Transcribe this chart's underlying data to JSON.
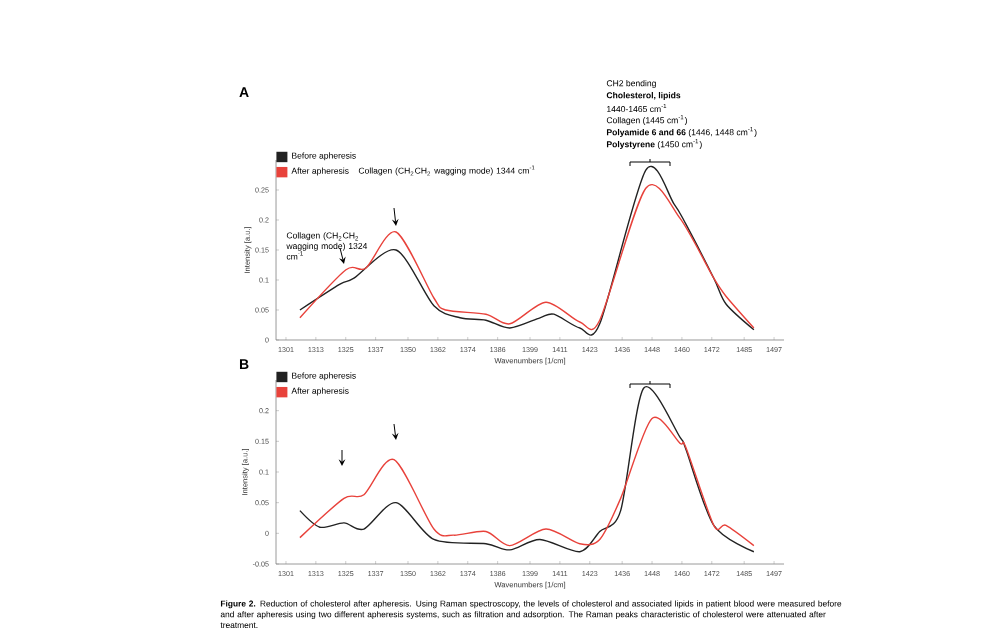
{
  "chart_data": [
    {
      "type": "line",
      "title": "A",
      "xlabel": "Wavenumbers [1/cm]",
      "ylabel": "Intensity [a.u.]",
      "legend": "top left",
      "grid": false,
      "marker": "none",
      "line_style": "solid",
      "xlim": [
        1297,
        1501
      ],
      "xticks": [
        1301,
        1313,
        1325,
        1337,
        1350,
        1362,
        1374,
        1386,
        1399,
        1411,
        1423,
        1436,
        1448,
        1460,
        1472,
        1485,
        1497
      ],
      "ylim": [
        0,
        0.3
      ],
      "yticks": [
        0,
        0.05,
        0.1,
        0.15,
        0.2,
        0.25
      ],
      "x": [
        1306.6,
        1322.7,
        1328.3,
        1345.2,
        1360.4,
        1370.9,
        1381.3,
        1390.9,
        1403,
        1408.6,
        1419,
        1427,
        1445.5,
        1456.8,
        1461.6,
        1472.8,
        1477.7,
        1488.9
      ],
      "series": [
        {
          "name": "Before apheresis",
          "color": "#222222",
          "values": [
            0.05,
            0.093,
            0.103,
            0.15,
            0.057,
            0.037,
            0.033,
            0.02,
            0.037,
            0.043,
            0.02,
            0.027,
            0.283,
            0.227,
            0.193,
            0.103,
            0.06,
            0.017
          ]
        },
        {
          "name": "After apheresis",
          "color": "#e8423b",
          "x": [
            1306.6,
            1325.1,
            1333.1,
            1345.2,
            1360.4,
            1365.2,
            1381.3,
            1390.9,
            1405.4,
            1419,
            1427,
            1445.5,
            1459.2,
            1472.8,
            1477.7,
            1488.9
          ],
          "values": [
            0.037,
            0.117,
            0.12,
            0.18,
            0.07,
            0.05,
            0.043,
            0.027,
            0.063,
            0.03,
            0.033,
            0.253,
            0.203,
            0.103,
            0.073,
            0.02
          ]
        }
      ],
      "annotations": [
        "Collagen (CH$_{2}$CH$_{2}$ wagging mode) 1344 cm$^{-1}$",
        "Collagen (CH$_{2}$CH$_{2}$ wagging mode) 1324 cm$^{-1}$",
        "CH2 bending",
        "**Cholesterol, lipids**",
        "1440-1465 cm$^{-1}$",
        "Collagen (1445 cm$^{-1}$)",
        "**Polyamide 6 and 66** (1446, 1448 cm$^{-1}$)",
        "**Polystyrene** (1450 cm$^{-1}$)"
      ]
    },
    {
      "type": "line",
      "title": "B",
      "xlabel": "Wavenumbers [1/cm]",
      "ylabel": "Intensity [a.u.]",
      "legend": "top left",
      "grid": false,
      "marker": "none",
      "line_style": "solid",
      "xlim": [
        1297,
        1501
      ],
      "xticks": [
        1301,
        1313,
        1325,
        1337,
        1350,
        1362,
        1374,
        1386,
        1399,
        1411,
        1423,
        1436,
        1448,
        1460,
        1472,
        1485,
        1497
      ],
      "ylim": [
        -0.05,
        0.25
      ],
      "yticks": [
        -0.05,
        0,
        0.05,
        0.1,
        0.15,
        0.2
      ],
      "series": [
        {
          "name": "Before apheresis",
          "color": "#222222",
          "x": [
            1306.6,
            1314.6,
            1324.3,
            1332.3,
            1345.2,
            1360.4,
            1381.3,
            1390.9,
            1403,
            1419,
            1427,
            1435.4,
            1444.7,
            1459.2,
            1461.6,
            1472.8,
            1488.9
          ],
          "values": [
            0.037,
            0.01,
            0.017,
            0.007,
            0.05,
            -0.01,
            -0.017,
            -0.027,
            -0.01,
            -0.03,
            0.003,
            0.037,
            0.237,
            0.157,
            0.137,
            0.013,
            -0.03
          ]
        },
        {
          "name": "After apheresis",
          "color": "#e8423b",
          "x": [
            1306.6,
            1324.3,
            1332.3,
            1344.4,
            1360.4,
            1368.4,
            1381.3,
            1390.9,
            1405.4,
            1419,
            1427,
            1435.4,
            1447.9,
            1459.2,
            1461.6,
            1472.8,
            1477.7,
            1488.9
          ],
          "values": [
            -0.007,
            0.057,
            0.063,
            0.12,
            0.007,
            -0.003,
            0.003,
            -0.02,
            0.007,
            -0.017,
            -0.01,
            0.057,
            0.187,
            0.147,
            0.14,
            0.013,
            0.013,
            -0.02
          ]
        }
      ],
      "annotations": [
        "**Figure 2.** Reduction of cholesterol after apheresis. Using Raman spectroscopy, the levels of cholesterol and associated lipids in patient blood were measured before and after apheresis using two different apheresis systems, such as filtration and adsorption. The Raman peaks characteristic of cholesterol were attenuated after treatment."
      ]
    }
  ]
}
